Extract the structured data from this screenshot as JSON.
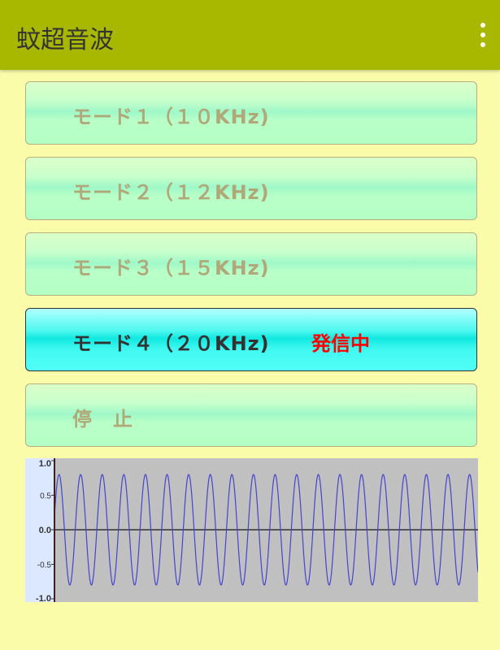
{
  "appbar": {
    "title": "蚊超音波",
    "menu_icon": "more-vert-icon"
  },
  "buttons": [
    {
      "label": "モード１（１０KHz)",
      "active": false
    },
    {
      "label": "モード２（１２KHz)",
      "active": false
    },
    {
      "label": "モード３（１５KHz)",
      "active": false
    },
    {
      "label": "モード４（２０KHz)",
      "active": true,
      "status": "発信中"
    },
    {
      "label": "停　止",
      "active": false
    }
  ],
  "colors": {
    "appbar": "#a8b800",
    "background": "#fafcaa",
    "status": "#ff0000",
    "wave": "#4444cc"
  },
  "chart_data": {
    "type": "line",
    "ylim": [
      -1.0,
      1.0
    ],
    "yticks": [
      "1.0",
      "0.5",
      "0.0",
      "-0.5",
      "-1.0"
    ],
    "grid": false,
    "series": [
      {
        "amplitude": 0.8,
        "cycles": 19.6,
        "start_value": 0.2
      }
    ]
  }
}
